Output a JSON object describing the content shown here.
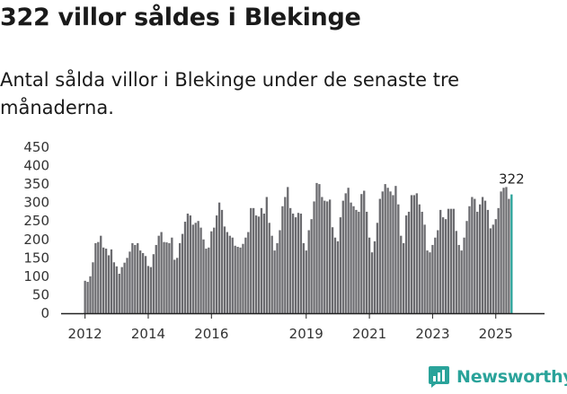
{
  "header": {
    "title": "322 villor såldes i Blekinge",
    "subtitle": "Antal sålda villor i Blekinge under de senaste tre månaderna."
  },
  "brand": {
    "name": "Newsworthy"
  },
  "colors": {
    "bar": "#6b6b6f",
    "highlight": "#2aa39a",
    "axis": "#222222"
  },
  "chart_data": {
    "type": "bar",
    "title": "322 villor såldes i Blekinge",
    "subtitle": "Antal sålda villor i Blekinge under de senaste tre månaderna.",
    "xlabel": "",
    "ylabel": "",
    "ylim": [
      0,
      450
    ],
    "y_ticks": [
      0,
      50,
      100,
      150,
      200,
      250,
      300,
      350,
      400,
      450
    ],
    "x_tick_labels": [
      "2012",
      "2014",
      "2016",
      "2019",
      "2021",
      "2023",
      "2025"
    ],
    "x_tick_index": [
      0,
      24,
      48,
      84,
      108,
      132,
      156
    ],
    "start": "2012-01",
    "highlight_label": "322",
    "values": [
      88,
      85,
      100,
      138,
      190,
      193,
      210,
      178,
      175,
      157,
      173,
      138,
      127,
      107,
      125,
      137,
      150,
      167,
      190,
      185,
      190,
      170,
      163,
      155,
      128,
      125,
      160,
      185,
      210,
      220,
      193,
      192,
      190,
      205,
      145,
      150,
      190,
      215,
      248,
      270,
      265,
      240,
      245,
      250,
      232,
      200,
      175,
      178,
      222,
      232,
      265,
      300,
      280,
      235,
      220,
      210,
      205,
      183,
      180,
      178,
      188,
      205,
      220,
      285,
      285,
      265,
      262,
      285,
      270,
      315,
      245,
      210,
      170,
      190,
      225,
      290,
      315,
      342,
      285,
      270,
      260,
      272,
      270,
      190,
      170,
      225,
      255,
      303,
      353,
      350,
      315,
      305,
      303,
      308,
      233,
      205,
      195,
      260,
      305,
      325,
      340,
      300,
      290,
      280,
      275,
      323,
      332,
      275,
      205,
      165,
      195,
      245,
      310,
      330,
      350,
      340,
      330,
      320,
      345,
      295,
      210,
      190,
      265,
      275,
      320,
      320,
      325,
      295,
      275,
      240,
      170,
      165,
      185,
      205,
      225,
      280,
      260,
      255,
      283,
      283,
      283,
      223,
      185,
      170,
      205,
      250,
      290,
      315,
      310,
      275,
      295,
      315,
      305,
      280,
      230,
      240,
      255,
      285,
      330,
      340,
      342,
      310,
      322
    ]
  }
}
